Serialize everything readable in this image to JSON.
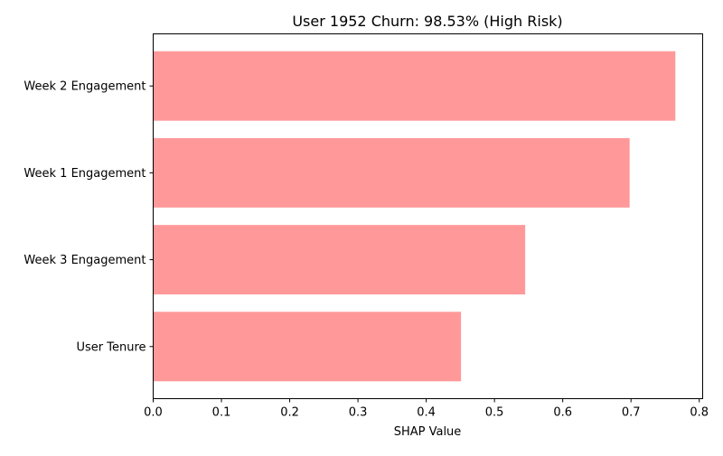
{
  "chart_data": {
    "type": "bar",
    "orientation": "horizontal",
    "title": "User 1952 Churn: 98.53% (High Risk)",
    "xlabel": "SHAP Value",
    "ylabel": "",
    "categories": [
      "Week 2 Engagement",
      "Week 1 Engagement",
      "Week 3 Engagement",
      "User Tenure"
    ],
    "values": [
      0.765,
      0.698,
      0.545,
      0.451
    ],
    "xlim": [
      0.0,
      0.805
    ],
    "xticks": [
      0.0,
      0.1,
      0.2,
      0.3,
      0.4,
      0.5,
      0.6,
      0.7,
      0.8
    ],
    "xtick_labels": [
      "0.0",
      "0.1",
      "0.2",
      "0.3",
      "0.4",
      "0.5",
      "0.6",
      "0.7",
      "0.8"
    ],
    "bar_color": "#ff9999",
    "grid": false,
    "legend": "none"
  }
}
